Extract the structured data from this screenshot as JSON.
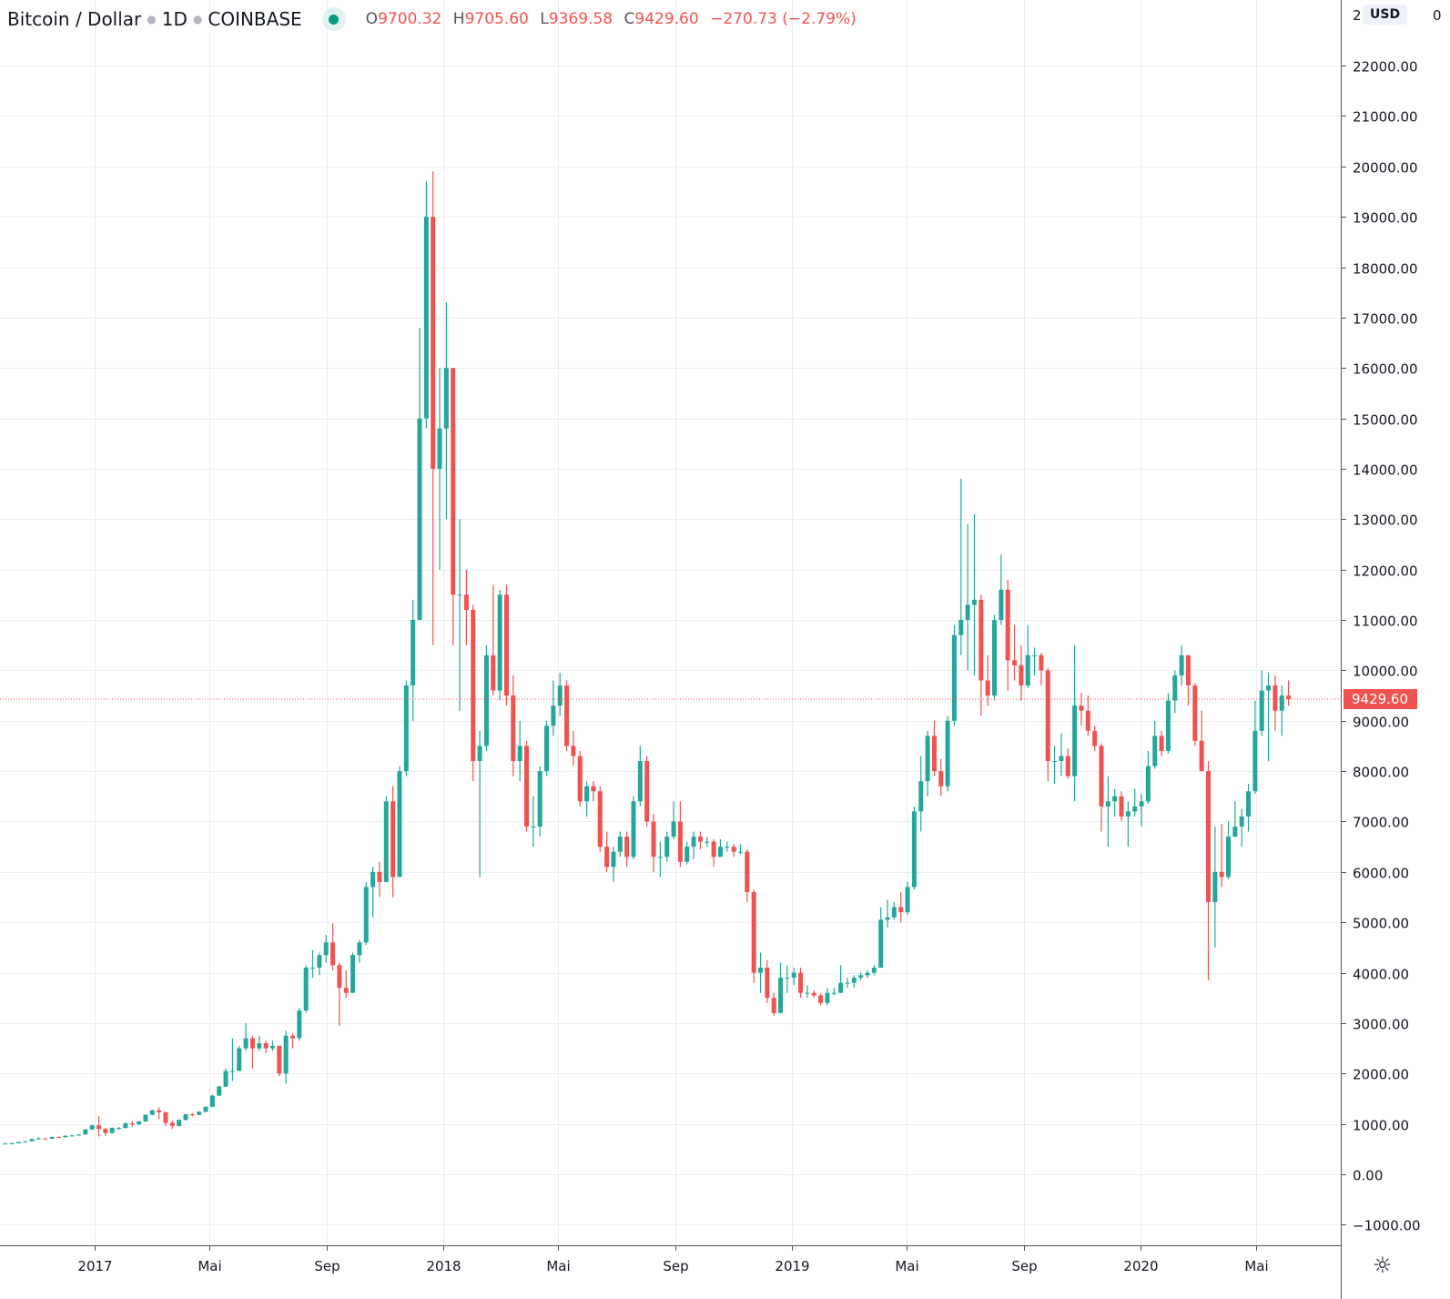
{
  "header": {
    "symbol": "Bitcoin / Dollar",
    "interval": "1D",
    "exchange": "COINBASE",
    "open_label": "O",
    "open": "9700.32",
    "high_label": "H",
    "high": "9705.60",
    "low_label": "L",
    "low": "9369.58",
    "close_label": "C",
    "close": "9429.60",
    "change": "−270.73 (−2.79%)"
  },
  "currency_button": "USD",
  "axis_top_partial": {
    "left": "2",
    "right": "0"
  },
  "settings_icon": "gear-icon",
  "colors": {
    "up": "#26a69a",
    "down": "#ef5350",
    "grid": "#e8eef3",
    "axis": "#50535e",
    "last_price": "#ef5350"
  },
  "chart_data": {
    "type": "candlestick",
    "title": "Bitcoin / Dollar · 1D · COINBASE",
    "ylim": [
      -1000,
      23000
    ],
    "y_ticks": [
      "22000.00",
      "21000.00",
      "20000.00",
      "19000.00",
      "18000.00",
      "17000.00",
      "16000.00",
      "15000.00",
      "14000.00",
      "13000.00",
      "12000.00",
      "11000.00",
      "10000.00",
      "9000.00",
      "8000.00",
      "7000.00",
      "6000.00",
      "5000.00",
      "4000.00",
      "3000.00",
      "2000.00",
      "1000.00",
      "0.00",
      "−1000.00"
    ],
    "y_tick_values": [
      22000,
      21000,
      20000,
      19000,
      18000,
      17000,
      16000,
      15000,
      14000,
      13000,
      12000,
      11000,
      10000,
      9000,
      8000,
      7000,
      6000,
      5000,
      4000,
      3000,
      2000,
      1000,
      0,
      -1000
    ],
    "x_ticks": [
      {
        "label": "2017",
        "date": "2017-01-01"
      },
      {
        "label": "Mai",
        "date": "2017-05-01"
      },
      {
        "label": "Sep",
        "date": "2017-09-01"
      },
      {
        "label": "2018",
        "date": "2018-01-01"
      },
      {
        "label": "Mai",
        "date": "2018-05-01"
      },
      {
        "label": "Sep",
        "date": "2018-09-01"
      },
      {
        "label": "2019",
        "date": "2019-01-01"
      },
      {
        "label": "Mai",
        "date": "2019-05-01"
      },
      {
        "label": "Sep",
        "date": "2019-09-01"
      },
      {
        "label": "2020",
        "date": "2020-01-01"
      },
      {
        "label": "Mai",
        "date": "2020-05-01"
      }
    ],
    "last_price": 9429.6,
    "last_price_label": "9429.60",
    "grid": true,
    "columns": [
      "date",
      "high",
      "low",
      "close"
    ],
    "candles": [
      [
        "2016-09-26",
        620,
        600,
        610
      ],
      [
        "2016-10-03",
        625,
        605,
        615
      ],
      [
        "2016-10-10",
        645,
        610,
        640
      ],
      [
        "2016-10-17",
        660,
        630,
        655
      ],
      [
        "2016-10-24",
        710,
        650,
        700
      ],
      [
        "2016-10-31",
        740,
        690,
        710
      ],
      [
        "2016-11-07",
        720,
        690,
        705
      ],
      [
        "2016-11-14",
        750,
        700,
        740
      ],
      [
        "2016-11-21",
        750,
        720,
        735
      ],
      [
        "2016-11-28",
        770,
        730,
        765
      ],
      [
        "2016-12-05",
        780,
        750,
        770
      ],
      [
        "2016-12-12",
        800,
        765,
        790
      ],
      [
        "2016-12-19",
        900,
        785,
        890
      ],
      [
        "2016-12-26",
        980,
        880,
        970
      ],
      [
        "2017-01-02",
        1150,
        750,
        900
      ],
      [
        "2017-01-09",
        920,
        760,
        820
      ],
      [
        "2017-01-16",
        930,
        810,
        920
      ],
      [
        "2017-01-23",
        940,
        880,
        920
      ],
      [
        "2017-01-30",
        1030,
        910,
        1010
      ],
      [
        "2017-02-06",
        1060,
        950,
        990
      ],
      [
        "2017-02-13",
        1060,
        980,
        1050
      ],
      [
        "2017-02-20",
        1190,
        1040,
        1180
      ],
      [
        "2017-02-27",
        1280,
        1170,
        1270
      ],
      [
        "2017-03-06",
        1330,
        1100,
        1230
      ],
      [
        "2017-03-13",
        1250,
        950,
        1020
      ],
      [
        "2017-03-20",
        1070,
        900,
        960
      ],
      [
        "2017-03-27",
        1090,
        950,
        1080
      ],
      [
        "2017-04-03",
        1200,
        1060,
        1190
      ],
      [
        "2017-04-10",
        1210,
        1150,
        1180
      ],
      [
        "2017-04-17",
        1250,
        1170,
        1240
      ],
      [
        "2017-04-24",
        1350,
        1230,
        1340
      ],
      [
        "2017-05-01",
        1580,
        1330,
        1560
      ],
      [
        "2017-05-08",
        1760,
        1550,
        1740
      ],
      [
        "2017-05-15",
        2100,
        1730,
        2050
      ],
      [
        "2017-05-22",
        2700,
        1850,
        2050
      ],
      [
        "2017-05-29",
        2550,
        2050,
        2500
      ],
      [
        "2017-06-05",
        3000,
        2450,
        2700
      ],
      [
        "2017-06-12",
        2750,
        2100,
        2500
      ],
      [
        "2017-06-19",
        2750,
        2450,
        2600
      ],
      [
        "2017-06-26",
        2650,
        2400,
        2500
      ],
      [
        "2017-07-03",
        2650,
        2450,
        2550
      ],
      [
        "2017-07-10",
        2550,
        1950,
        2000
      ],
      [
        "2017-07-17",
        2850,
        1800,
        2750
      ],
      [
        "2017-07-24",
        2800,
        2500,
        2700
      ],
      [
        "2017-07-31",
        3300,
        2650,
        3250
      ],
      [
        "2017-08-07",
        4150,
        3200,
        4100
      ],
      [
        "2017-08-14",
        4450,
        3900,
        4100
      ],
      [
        "2017-08-21",
        4400,
        3950,
        4350
      ],
      [
        "2017-08-28",
        4750,
        4200,
        4600
      ],
      [
        "2017-09-04",
        4980,
        4050,
        4150
      ],
      [
        "2017-09-11",
        4200,
        2950,
        3700
      ],
      [
        "2017-09-18",
        4050,
        3500,
        3600
      ],
      [
        "2017-09-25",
        4400,
        3600,
        4350
      ],
      [
        "2017-10-02",
        4650,
        4200,
        4600
      ],
      [
        "2017-10-09",
        5800,
        4550,
        5700
      ],
      [
        "2017-10-16",
        6100,
        5100,
        6000
      ],
      [
        "2017-10-23",
        6200,
        5500,
        5800
      ],
      [
        "2017-10-30",
        7500,
        5800,
        7400
      ],
      [
        "2017-11-06",
        7700,
        5500,
        5900
      ],
      [
        "2017-11-13",
        8100,
        5900,
        8000
      ],
      [
        "2017-11-20",
        9800,
        7900,
        9700
      ],
      [
        "2017-11-27",
        11400,
        9000,
        11000
      ],
      [
        "2017-12-04",
        16800,
        11000,
        15000
      ],
      [
        "2017-12-11",
        19700,
        14800,
        19000
      ],
      [
        "2017-12-18",
        19900,
        10500,
        14000
      ],
      [
        "2017-12-25",
        16000,
        12000,
        14800
      ],
      [
        "2018-01-01",
        17300,
        13000,
        16000
      ],
      [
        "2018-01-08",
        15000,
        10500,
        11500
      ],
      [
        "2018-01-15",
        13000,
        9200,
        11500
      ],
      [
        "2018-01-22",
        12000,
        10500,
        11200
      ],
      [
        "2018-01-29",
        11300,
        7800,
        8200
      ],
      [
        "2018-02-05",
        8800,
        5900,
        8500
      ],
      [
        "2018-02-12",
        10500,
        8400,
        10300
      ],
      [
        "2018-02-19",
        11700,
        9500,
        9600
      ],
      [
        "2018-02-26",
        11600,
        9400,
        11500
      ],
      [
        "2018-03-05",
        11700,
        9300,
        9500
      ],
      [
        "2018-03-12",
        9900,
        7900,
        8200
      ],
      [
        "2018-03-19",
        9000,
        7800,
        8500
      ],
      [
        "2018-03-26",
        8600,
        6800,
        6900
      ],
      [
        "2018-04-02",
        7500,
        6500,
        6900
      ],
      [
        "2018-04-09",
        8100,
        6700,
        8000
      ],
      [
        "2018-04-16",
        9000,
        7900,
        8900
      ],
      [
        "2018-04-23",
        9800,
        8700,
        9300
      ],
      [
        "2018-04-30",
        9950,
        9100,
        9700
      ],
      [
        "2018-05-07",
        9800,
        8400,
        8500
      ],
      [
        "2018-05-14",
        8800,
        8100,
        8300
      ],
      [
        "2018-05-21",
        8400,
        7300,
        7400
      ],
      [
        "2018-05-28",
        7800,
        7100,
        7700
      ],
      [
        "2018-06-04",
        7800,
        7400,
        7600
      ],
      [
        "2018-06-11",
        7700,
        6400,
        6500
      ],
      [
        "2018-06-18",
        6800,
        6000,
        6100
      ],
      [
        "2018-06-25",
        6500,
        5800,
        6400
      ],
      [
        "2018-07-02",
        6800,
        6300,
        6700
      ],
      [
        "2018-07-09",
        6800,
        6100,
        6300
      ],
      [
        "2018-07-16",
        7500,
        6250,
        7400
      ],
      [
        "2018-07-23",
        8500,
        7300,
        8200
      ],
      [
        "2018-07-30",
        8300,
        6900,
        7000
      ],
      [
        "2018-08-06",
        7150,
        6000,
        6300
      ],
      [
        "2018-08-13",
        6600,
        5900,
        6300
      ],
      [
        "2018-08-20",
        6800,
        6200,
        6700
      ],
      [
        "2018-08-27",
        7400,
        6650,
        7000
      ],
      [
        "2018-09-03",
        7400,
        6100,
        6200
      ],
      [
        "2018-09-10",
        6600,
        6150,
        6500
      ],
      [
        "2018-09-17",
        6800,
        6250,
        6700
      ],
      [
        "2018-09-24",
        6800,
        6450,
        6600
      ],
      [
        "2018-10-01",
        6700,
        6500,
        6600
      ],
      [
        "2018-10-08",
        6650,
        6100,
        6300
      ],
      [
        "2018-10-15",
        6650,
        6300,
        6500
      ],
      [
        "2018-10-22",
        6600,
        6400,
        6500
      ],
      [
        "2018-10-29",
        6550,
        6300,
        6400
      ],
      [
        "2018-11-05",
        6550,
        6350,
        6400
      ],
      [
        "2018-11-12",
        6450,
        5400,
        5600
      ],
      [
        "2018-11-19",
        5650,
        3800,
        4000
      ],
      [
        "2018-11-26",
        4400,
        3600,
        4100
      ],
      [
        "2018-12-03",
        4250,
        3400,
        3500
      ],
      [
        "2018-12-10",
        3600,
        3150,
        3200
      ],
      [
        "2018-12-17",
        4200,
        3200,
        3900
      ],
      [
        "2018-12-24",
        4150,
        3600,
        3900
      ],
      [
        "2018-12-31",
        4100,
        3750,
        4000
      ],
      [
        "2019-01-07",
        4100,
        3500,
        3600
      ],
      [
        "2019-01-14",
        3750,
        3500,
        3600
      ],
      [
        "2019-01-21",
        3650,
        3500,
        3550
      ],
      [
        "2019-01-28",
        3600,
        3350,
        3400
      ],
      [
        "2019-02-04",
        3700,
        3350,
        3600
      ],
      [
        "2019-02-11",
        3700,
        3550,
        3600
      ],
      [
        "2019-02-18",
        4150,
        3600,
        3800
      ],
      [
        "2019-02-25",
        3900,
        3700,
        3800
      ],
      [
        "2019-03-04",
        3950,
        3700,
        3900
      ],
      [
        "2019-03-11",
        4000,
        3850,
        3950
      ],
      [
        "2019-03-18",
        4050,
        3900,
        4000
      ],
      [
        "2019-03-25",
        4150,
        3950,
        4100
      ],
      [
        "2019-04-01",
        5300,
        4100,
        5050
      ],
      [
        "2019-04-08",
        5450,
        4900,
        5100
      ],
      [
        "2019-04-15",
        5400,
        5050,
        5300
      ],
      [
        "2019-04-22",
        5600,
        5000,
        5200
      ],
      [
        "2019-04-29",
        5800,
        5150,
        5700
      ],
      [
        "2019-05-06",
        7300,
        5650,
        7200
      ],
      [
        "2019-05-13",
        8300,
        6800,
        7800
      ],
      [
        "2019-05-20",
        8800,
        7500,
        8700
      ],
      [
        "2019-05-27",
        9000,
        7900,
        8000
      ],
      [
        "2019-06-03",
        8250,
        7500,
        7700
      ],
      [
        "2019-06-10",
        9100,
        7600,
        9000
      ],
      [
        "2019-06-17",
        10900,
        8900,
        10700
      ],
      [
        "2019-06-24",
        13800,
        10300,
        11000
      ],
      [
        "2019-07-01",
        12900,
        10000,
        11300
      ],
      [
        "2019-07-08",
        13100,
        9900,
        11400
      ],
      [
        "2019-07-15",
        11500,
        9100,
        9800
      ],
      [
        "2019-07-22",
        10300,
        9300,
        9500
      ],
      [
        "2019-07-29",
        11100,
        9400,
        11000
      ],
      [
        "2019-08-05",
        12300,
        10900,
        11600
      ],
      [
        "2019-08-12",
        11800,
        9600,
        10200
      ],
      [
        "2019-08-19",
        10900,
        9800,
        10100
      ],
      [
        "2019-08-26",
        10500,
        9400,
        9700
      ],
      [
        "2019-09-02",
        10900,
        9650,
        10300
      ],
      [
        "2019-09-09",
        10450,
        9900,
        10300
      ],
      [
        "2019-09-16",
        10350,
        9700,
        10000
      ],
      [
        "2019-09-23",
        10050,
        7800,
        8200
      ],
      [
        "2019-09-30",
        8500,
        7750,
        8200
      ],
      [
        "2019-10-07",
        8750,
        7900,
        8300
      ],
      [
        "2019-10-14",
        8450,
        7850,
        7900
      ],
      [
        "2019-10-21",
        10500,
        7400,
        9300
      ],
      [
        "2019-10-28",
        9550,
        8900,
        9200
      ],
      [
        "2019-11-04",
        9500,
        8700,
        8800
      ],
      [
        "2019-11-11",
        8900,
        8400,
        8500
      ],
      [
        "2019-11-18",
        8550,
        6800,
        7300
      ],
      [
        "2019-11-25",
        7900,
        6500,
        7400
      ],
      [
        "2019-12-02",
        7650,
        7100,
        7500
      ],
      [
        "2019-12-09",
        7600,
        7000,
        7100
      ],
      [
        "2019-12-16",
        7400,
        6500,
        7200
      ],
      [
        "2019-12-23",
        7650,
        7100,
        7300
      ],
      [
        "2019-12-30",
        7550,
        6900,
        7400
      ],
      [
        "2020-01-06",
        8400,
        7350,
        8100
      ],
      [
        "2020-01-13",
        9000,
        8050,
        8700
      ],
      [
        "2020-01-20",
        8800,
        8300,
        8400
      ],
      [
        "2020-01-27",
        9550,
        8350,
        9400
      ],
      [
        "2020-02-03",
        10000,
        9150,
        9900
      ],
      [
        "2020-02-10",
        10500,
        9700,
        10300
      ],
      [
        "2020-02-17",
        10300,
        9300,
        9700
      ],
      [
        "2020-02-24",
        9750,
        8500,
        8600
      ],
      [
        "2020-03-02",
        9200,
        8000,
        8000
      ],
      [
        "2020-03-09",
        8200,
        3850,
        5400
      ],
      [
        "2020-03-16",
        6900,
        4500,
        6000
      ],
      [
        "2020-03-23",
        6950,
        5700,
        5900
      ],
      [
        "2020-03-30",
        7000,
        5850,
        6700
      ],
      [
        "2020-04-06",
        7400,
        6700,
        6900
      ],
      [
        "2020-04-13",
        7250,
        6500,
        7100
      ],
      [
        "2020-04-20",
        7750,
        6800,
        7600
      ],
      [
        "2020-04-27",
        9400,
        7550,
        8800
      ],
      [
        "2020-05-04",
        10000,
        8700,
        9600
      ],
      [
        "2020-05-11",
        9950,
        8200,
        9700
      ],
      [
        "2020-05-18",
        9900,
        8800,
        9200
      ],
      [
        "2020-05-25",
        9700,
        8700,
        9500
      ],
      [
        "2020-06-01",
        9800,
        9300,
        9430
      ]
    ]
  }
}
